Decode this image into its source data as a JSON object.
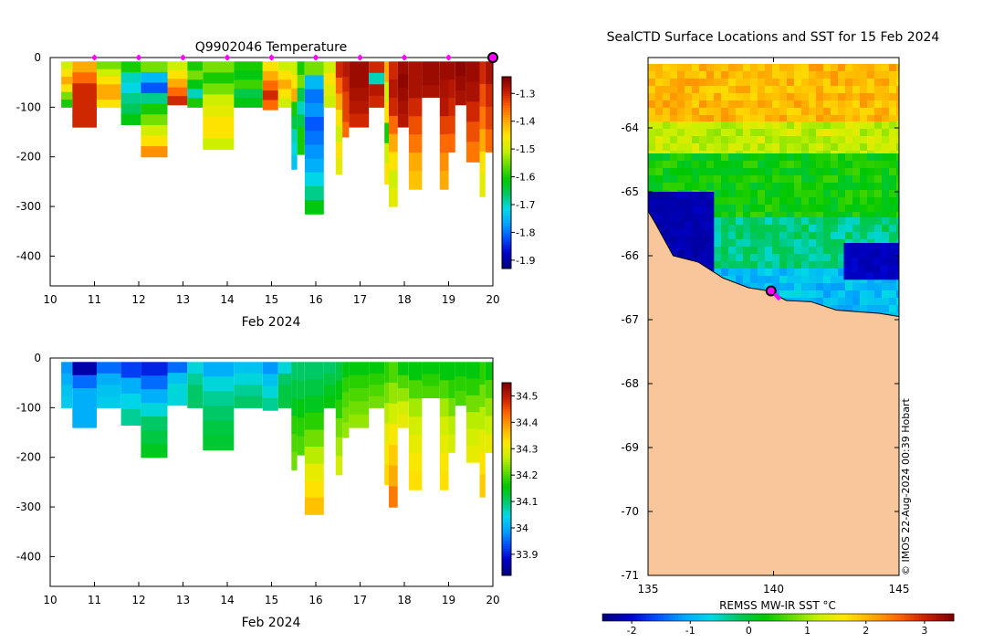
{
  "colors": {
    "land": "#f9c69b",
    "marker": "#ff00ff",
    "ocean_blank": "#ffffff",
    "scale": [
      "#00007f",
      "#0000cc",
      "#0050ff",
      "#00a5ff",
      "#00d8e6",
      "#00c864",
      "#00c800",
      "#64dc00",
      "#c8f000",
      "#ffe600",
      "#ffaa00",
      "#ff6400",
      "#c81e00",
      "#800000"
    ]
  },
  "chart_data": [
    {
      "type": "heatmap",
      "id": "temperature-section",
      "title": "Q9902046  Temperature",
      "xlabel": "Feb 2024",
      "ylabel": "",
      "xlim": [
        10,
        20
      ],
      "ylim": [
        -460,
        0
      ],
      "x_ticks": [
        10,
        11,
        12,
        13,
        14,
        15,
        16,
        17,
        18,
        19,
        20
      ],
      "y_ticks": [
        0,
        -100,
        -200,
        -300,
        -400
      ],
      "colorbar": {
        "min": -1.93,
        "max": -1.24,
        "ticks": [
          -1.3,
          -1.4,
          -1.5,
          -1.6,
          -1.7,
          -1.8,
          -1.9
        ]
      },
      "surface_markers": [
        11,
        12,
        13,
        14,
        15,
        16,
        17,
        18,
        19,
        20
      ],
      "latest_marker": 20,
      "profiles": [
        {
          "t0": 10.25,
          "t1": 10.5,
          "depth": 100,
          "values": [
            -1.5,
            -1.45,
            -1.4,
            -1.45,
            -1.55,
            -1.6
          ]
        },
        {
          "t0": 10.5,
          "t1": 11.05,
          "depth": 140,
          "values": [
            -1.4,
            -1.35,
            -1.3,
            -1.3,
            -1.3,
            -1.3
          ]
        },
        {
          "t0": 11.05,
          "t1": 11.6,
          "depth": 100,
          "values": [
            -1.55,
            -1.5,
            -1.45,
            -1.4,
            -1.4,
            -1.45
          ]
        },
        {
          "t0": 11.6,
          "t1": 12.05,
          "depth": 135,
          "values": [
            -1.6,
            -1.7,
            -1.72,
            -1.68,
            -1.66,
            -1.62
          ]
        },
        {
          "t0": 12.05,
          "t1": 12.65,
          "depth": 200,
          "values": [
            -1.55,
            -1.75,
            -1.82,
            -1.68,
            -1.6,
            -1.55,
            -1.5,
            -1.45,
            -1.38
          ]
        },
        {
          "t0": 12.65,
          "t1": 13.1,
          "depth": 95,
          "values": [
            -1.5,
            -1.45,
            -1.4,
            -1.35,
            -1.3
          ]
        },
        {
          "t0": 13.1,
          "t1": 13.45,
          "depth": 100,
          "values": [
            -1.6,
            -1.55,
            -1.62,
            -1.7,
            -1.6
          ]
        },
        {
          "t0": 13.45,
          "t1": 14.15,
          "depth": 185,
          "values": [
            -1.55,
            -1.6,
            -1.55,
            -1.5,
            -1.48,
            -1.45,
            -1.45,
            -1.5
          ]
        },
        {
          "t0": 14.15,
          "t1": 14.8,
          "depth": 100,
          "values": [
            -1.6,
            -1.62,
            -1.58,
            -1.65,
            -1.62
          ]
        },
        {
          "t0": 14.8,
          "t1": 15.15,
          "depth": 105,
          "values": [
            -1.45,
            -1.4,
            -1.35,
            -1.3,
            -1.35
          ]
        },
        {
          "t0": 15.15,
          "t1": 15.45,
          "depth": 100,
          "values": [
            -1.5,
            -1.45,
            -1.4,
            -1.45,
            -1.5
          ]
        },
        {
          "t0": 15.45,
          "t1": 15.58,
          "depth": 225,
          "values": [
            -1.5,
            -1.45,
            -1.4,
            -1.6,
            -1.65,
            -1.7,
            -1.72,
            -1.74
          ]
        },
        {
          "t0": 15.58,
          "t1": 15.75,
          "depth": 195,
          "values": [
            -1.6,
            -1.55,
            -1.65,
            -1.7,
            -1.65,
            -1.6,
            -1.6
          ]
        },
        {
          "t0": 15.75,
          "t1": 16.18,
          "depth": 315,
          "values": [
            -1.55,
            -1.75,
            -1.8,
            -1.78,
            -1.82,
            -1.8,
            -1.78,
            -1.76,
            -1.72,
            -1.68,
            -1.62
          ]
        },
        {
          "t0": 16.18,
          "t1": 16.45,
          "depth": 100,
          "values": [
            -1.5,
            -1.45,
            -1.48,
            -1.5
          ]
        },
        {
          "t0": 16.45,
          "t1": 16.6,
          "depth": 235,
          "values": [
            -1.3,
            -1.35,
            -1.4,
            -1.45,
            -1.5,
            -1.45,
            -1.48
          ]
        },
        {
          "t0": 16.6,
          "t1": 16.75,
          "depth": 160,
          "values": [
            -1.28,
            -1.3,
            -1.32,
            -1.32,
            -1.35
          ]
        },
        {
          "t0": 16.75,
          "t1": 17.2,
          "depth": 140,
          "values": [
            -1.26,
            -1.26,
            -1.27,
            -1.28,
            -1.3
          ]
        },
        {
          "t0": 17.2,
          "t1": 17.55,
          "depth": 100,
          "values": [
            -1.3,
            -1.7,
            -1.28,
            -1.3
          ]
        },
        {
          "t0": 17.55,
          "t1": 17.65,
          "depth": 255,
          "values": [
            -1.4,
            -1.5,
            -1.45,
            -1.6,
            -1.5,
            -1.45
          ]
        },
        {
          "t0": 17.65,
          "t1": 17.85,
          "depth": 300,
          "values": [
            -1.3,
            -1.28,
            -1.3,
            -1.35,
            -1.4,
            -1.45,
            -1.5,
            -1.48
          ]
        },
        {
          "t0": 17.85,
          "t1": 18.1,
          "depth": 140,
          "values": [
            -1.26,
            -1.25,
            -1.26,
            -1.27,
            -1.28
          ]
        },
        {
          "t0": 18.1,
          "t1": 18.4,
          "depth": 265,
          "values": [
            -1.27,
            -1.27,
            -1.3,
            -1.33,
            -1.36,
            -1.4,
            -1.42
          ]
        },
        {
          "t0": 18.4,
          "t1": 18.8,
          "depth": 80,
          "values": [
            -1.26,
            -1.26,
            -1.27
          ]
        },
        {
          "t0": 18.8,
          "t1": 19.0,
          "depth": 265,
          "values": [
            -1.26,
            -1.27,
            -1.28,
            -1.32,
            -1.35,
            -1.38,
            -1.4
          ]
        },
        {
          "t0": 19.0,
          "t1": 19.15,
          "depth": 190,
          "values": [
            -1.26,
            -1.28,
            -1.3,
            -1.32,
            -1.35
          ]
        },
        {
          "t0": 19.15,
          "t1": 19.4,
          "depth": 95,
          "values": [
            -1.25,
            -1.26,
            -1.27
          ]
        },
        {
          "t0": 19.4,
          "t1": 19.7,
          "depth": 210,
          "values": [
            -1.26,
            -1.27,
            -1.3,
            -1.33,
            -1.36
          ]
        },
        {
          "t0": 19.7,
          "t1": 19.83,
          "depth": 280,
          "values": [
            -1.3,
            -1.33,
            -1.36,
            -1.4,
            -1.45,
            -1.48
          ]
        },
        {
          "t0": 19.83,
          "t1": 20.0,
          "depth": 190,
          "values": [
            -1.27,
            -1.3,
            -1.32,
            -1.35
          ]
        }
      ]
    },
    {
      "type": "heatmap",
      "id": "salinity-section",
      "title": "",
      "xlabel": "Feb 2024",
      "ylabel": "",
      "xlim": [
        10,
        20
      ],
      "ylim": [
        -460,
        0
      ],
      "x_ticks": [
        10,
        11,
        12,
        13,
        14,
        15,
        16,
        17,
        18,
        19,
        20
      ],
      "y_ticks": [
        0,
        -100,
        -200,
        -300,
        -400
      ],
      "colorbar": {
        "min": 33.82,
        "max": 34.55,
        "ticks": [
          34.5,
          34.4,
          34.3,
          34.2,
          34.1,
          34,
          33.9
        ]
      },
      "profiles": [
        {
          "t0": 10.25,
          "t1": 10.5,
          "depth": 100,
          "values": [
            33.98,
            34.0,
            34.02,
            34.03
          ]
        },
        {
          "t0": 10.5,
          "t1": 11.05,
          "depth": 140,
          "values": [
            33.85,
            33.95,
            34.0,
            34.0,
            34.0
          ]
        },
        {
          "t0": 11.05,
          "t1": 11.6,
          "depth": 100,
          "values": [
            33.95,
            34.0,
            34.02,
            34.03
          ]
        },
        {
          "t0": 11.6,
          "t1": 12.05,
          "depth": 135,
          "values": [
            33.92,
            34.0,
            34.04,
            34.08
          ]
        },
        {
          "t0": 12.05,
          "t1": 12.65,
          "depth": 200,
          "values": [
            33.9,
            33.95,
            34.0,
            34.05,
            34.1,
            34.12,
            34.14
          ]
        },
        {
          "t0": 12.65,
          "t1": 13.1,
          "depth": 95,
          "values": [
            33.95,
            34.02,
            34.05,
            34.05
          ]
        },
        {
          "t0": 13.1,
          "t1": 13.45,
          "depth": 100,
          "values": [
            34.05,
            34.08,
            34.1,
            34.1
          ]
        },
        {
          "t0": 13.45,
          "t1": 14.15,
          "depth": 185,
          "values": [
            34.0,
            34.05,
            34.08,
            34.1,
            34.12,
            34.13
          ]
        },
        {
          "t0": 14.15,
          "t1": 14.8,
          "depth": 100,
          "values": [
            34.02,
            34.05,
            34.08,
            34.1
          ]
        },
        {
          "t0": 14.8,
          "t1": 15.15,
          "depth": 105,
          "values": [
            33.98,
            34.02,
            34.05,
            34.08
          ]
        },
        {
          "t0": 15.15,
          "t1": 15.45,
          "depth": 100,
          "values": [
            34.05,
            34.1,
            34.12,
            34.12
          ]
        },
        {
          "t0": 15.45,
          "t1": 15.58,
          "depth": 225,
          "values": [
            34.1,
            34.12,
            34.14,
            34.18,
            34.2,
            34.22
          ]
        },
        {
          "t0": 15.58,
          "t1": 15.75,
          "depth": 195,
          "values": [
            34.1,
            34.12,
            34.15,
            34.18,
            34.2
          ]
        },
        {
          "t0": 15.75,
          "t1": 16.18,
          "depth": 315,
          "values": [
            34.1,
            34.12,
            34.14,
            34.18,
            34.22,
            34.26,
            34.3,
            34.33,
            34.36
          ]
        },
        {
          "t0": 16.18,
          "t1": 16.45,
          "depth": 100,
          "values": [
            34.1,
            34.12,
            34.14,
            34.15
          ]
        },
        {
          "t0": 16.45,
          "t1": 16.6,
          "depth": 235,
          "values": [
            34.12,
            34.15,
            34.18,
            34.22,
            34.25,
            34.28
          ]
        },
        {
          "t0": 16.6,
          "t1": 16.75,
          "depth": 160,
          "values": [
            34.15,
            34.18,
            34.2,
            34.22,
            34.24
          ]
        },
        {
          "t0": 16.75,
          "t1": 17.2,
          "depth": 140,
          "values": [
            34.15,
            34.18,
            34.2,
            34.22,
            34.24
          ]
        },
        {
          "t0": 17.2,
          "t1": 17.55,
          "depth": 100,
          "values": [
            34.15,
            34.18,
            34.2,
            34.22
          ]
        },
        {
          "t0": 17.55,
          "t1": 17.65,
          "depth": 255,
          "values": [
            34.18,
            34.22,
            34.26,
            34.3,
            34.32,
            34.34
          ]
        },
        {
          "t0": 17.65,
          "t1": 17.85,
          "depth": 300,
          "values": [
            34.2,
            34.24,
            34.28,
            34.32,
            34.35,
            34.38,
            34.42
          ]
        },
        {
          "t0": 17.85,
          "t1": 18.1,
          "depth": 140,
          "values": [
            34.15,
            34.2,
            34.24,
            34.28,
            34.3
          ]
        },
        {
          "t0": 18.1,
          "t1": 18.4,
          "depth": 265,
          "values": [
            34.15,
            34.2,
            34.25,
            34.28,
            34.3,
            34.32,
            34.33
          ]
        },
        {
          "t0": 18.4,
          "t1": 18.8,
          "depth": 80,
          "values": [
            34.15,
            34.18,
            34.2
          ]
        },
        {
          "t0": 18.8,
          "t1": 19.0,
          "depth": 265,
          "values": [
            34.15,
            34.2,
            34.25,
            34.28,
            34.3,
            34.32,
            34.33
          ]
        },
        {
          "t0": 19.0,
          "t1": 19.15,
          "depth": 190,
          "values": [
            34.15,
            34.18,
            34.22,
            34.26,
            34.28
          ]
        },
        {
          "t0": 19.15,
          "t1": 19.4,
          "depth": 95,
          "values": [
            34.15,
            34.18,
            34.2
          ]
        },
        {
          "t0": 19.4,
          "t1": 19.7,
          "depth": 210,
          "values": [
            34.15,
            34.18,
            34.22,
            34.26,
            34.28,
            34.3
          ]
        },
        {
          "t0": 19.7,
          "t1": 19.83,
          "depth": 280,
          "values": [
            34.18,
            34.22,
            34.26,
            34.3,
            34.33,
            34.35
          ]
        },
        {
          "t0": 19.83,
          "t1": 20.0,
          "depth": 190,
          "values": [
            34.15,
            34.2,
            34.24,
            34.27,
            34.3
          ]
        }
      ]
    },
    {
      "type": "heatmap",
      "id": "sst-map",
      "title": "SealCTD Surface Locations and SST for 15 Feb 2024",
      "xlabel": "",
      "ylabel": "",
      "xlim": [
        135,
        145
      ],
      "ylim": [
        -71,
        -63
      ],
      "x_ticks": [
        135,
        140,
        145
      ],
      "y_ticks": [
        -64,
        -65,
        -66,
        -67,
        -68,
        -69,
        -70,
        -71
      ],
      "colorbar": {
        "label": "REMSS MW-IR SST °C",
        "min": -2.5,
        "max": 3.5,
        "ticks": [
          -2,
          -1,
          0,
          1,
          2,
          3
        ]
      },
      "sst_zones": [
        {
          "lat_top": -63,
          "lat_bottom": -63.9,
          "value": 2.0
        },
        {
          "lat_top": -63.9,
          "lat_bottom": -64.4,
          "value": 1.2
        },
        {
          "lat_top": -64.4,
          "lat_bottom": -65.4,
          "value": 0.3
        },
        {
          "lat_top": -65.4,
          "lat_bottom": -66.2,
          "value": -0.3
        },
        {
          "lat_top": -66.2,
          "lat_bottom": -67.0,
          "value": -0.9
        }
      ],
      "cold_patches": [
        {
          "lon_min": 135.0,
          "lon_max": 137.5,
          "lat_top": -65.0,
          "lat_bottom": -66.2,
          "value": -2.2
        },
        {
          "lon_min": 142.8,
          "lon_max": 145.0,
          "lat_top": -65.8,
          "lat_bottom": -66.3,
          "value": -2.1
        }
      ],
      "coastline": [
        [
          135.0,
          -65.3
        ],
        [
          135.3,
          -65.5
        ],
        [
          136.0,
          -66.0
        ],
        [
          137.0,
          -66.1
        ],
        [
          138.0,
          -66.35
        ],
        [
          139.0,
          -66.5
        ],
        [
          139.8,
          -66.55
        ],
        [
          140.5,
          -66.7
        ],
        [
          141.5,
          -66.72
        ],
        [
          142.5,
          -66.85
        ],
        [
          143.5,
          -66.88
        ],
        [
          144.2,
          -66.9
        ],
        [
          145.0,
          -66.95
        ]
      ],
      "markers": [
        {
          "lon": 139.9,
          "lat": -66.55
        },
        {
          "lon": 140.1,
          "lat": -66.62
        },
        {
          "lon": 140.2,
          "lat": -66.66
        }
      ],
      "credit": "© IMOS 22-Aug-2024 00:39 Hobart"
    }
  ]
}
